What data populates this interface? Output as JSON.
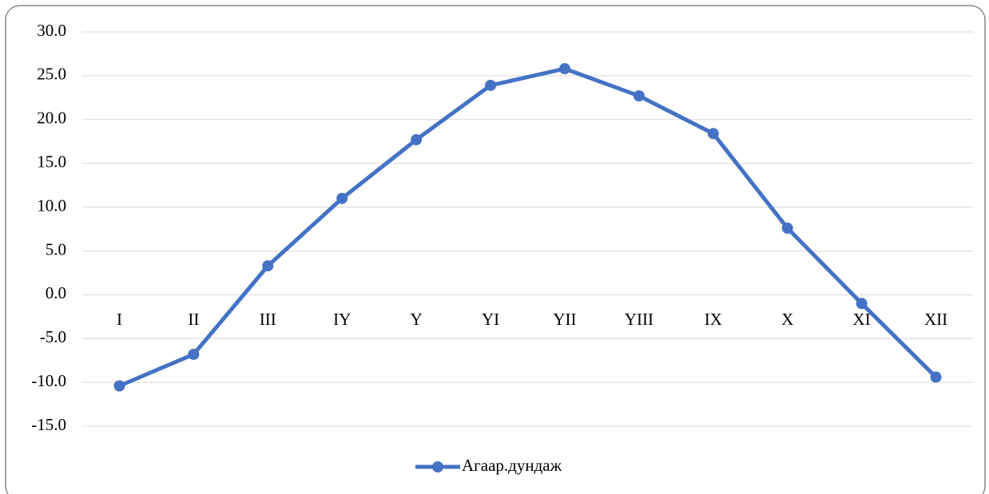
{
  "chart_data": {
    "type": "line",
    "categories": [
      "I",
      "II",
      "III",
      "IY",
      "Y",
      "YI",
      "YII",
      "YIII",
      "IX",
      "X",
      "XI",
      "XII"
    ],
    "series": [
      {
        "name": "Агаар.дундаж",
        "color": "#4472c4",
        "values": [
          -10.4,
          -6.8,
          3.3,
          11.0,
          17.7,
          23.9,
          25.8,
          22.7,
          18.4,
          7.6,
          -1.0,
          -9.4
        ]
      }
    ],
    "ylim": [
      -15,
      30
    ],
    "yticks": [
      {
        "value": -15,
        "label": "-15.0"
      },
      {
        "value": -10,
        "label": "-10.0"
      },
      {
        "value": -5,
        "label": "-5.0"
      },
      {
        "value": 0,
        "label": "0.0"
      },
      {
        "value": 5,
        "label": "5.0"
      },
      {
        "value": 10,
        "label": "10.0"
      },
      {
        "value": 15,
        "label": "15.0"
      },
      {
        "value": 20,
        "label": "20.0"
      },
      {
        "value": 25,
        "label": "25.0"
      },
      {
        "value": 30,
        "label": "30.0"
      }
    ],
    "grid": true,
    "legend": "bottom"
  }
}
